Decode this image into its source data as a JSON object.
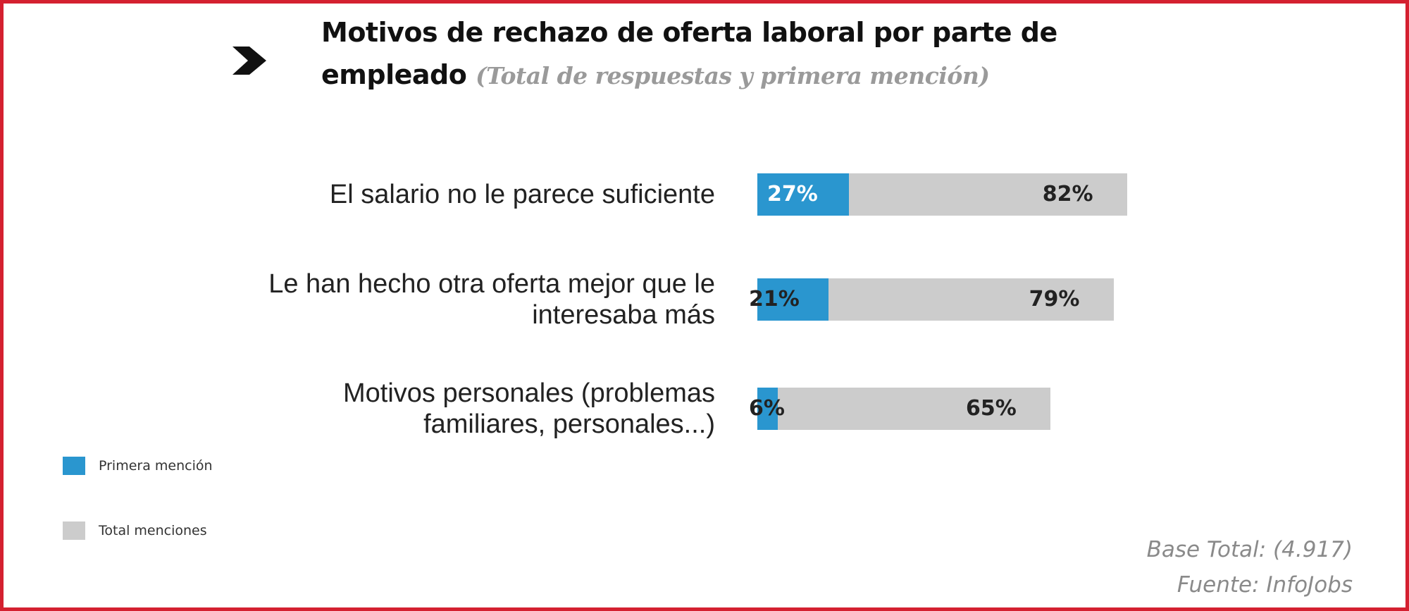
{
  "chart_data": {
    "type": "bar",
    "orientation": "horizontal",
    "title": "Motivos de rechazo de oferta laboral por parte de empleado",
    "subtitle": "(Total de respuestas y primera mención)",
    "categories": [
      [
        "El salario no le parece suficiente"
      ],
      [
        "Le han hecho otra oferta mejor que le",
        "interesaba más"
      ],
      [
        "Motivos personales (problemas",
        "familiares, personales...)"
      ]
    ],
    "series": [
      {
        "name": "Primera mención",
        "color": "#2a96cf",
        "values": [
          27,
          21,
          6
        ],
        "labels": [
          "27%",
          "21%",
          "6%"
        ]
      },
      {
        "name": "Total menciones",
        "color": "#cccccc",
        "values": [
          82,
          79,
          65
        ],
        "labels": [
          "82%",
          "79%",
          "65%"
        ]
      }
    ],
    "legend_position": "bottom-left",
    "unit": "%"
  },
  "footer": {
    "base": "Base Total: (4.917)",
    "source": "Fuente: InfoJobs"
  }
}
